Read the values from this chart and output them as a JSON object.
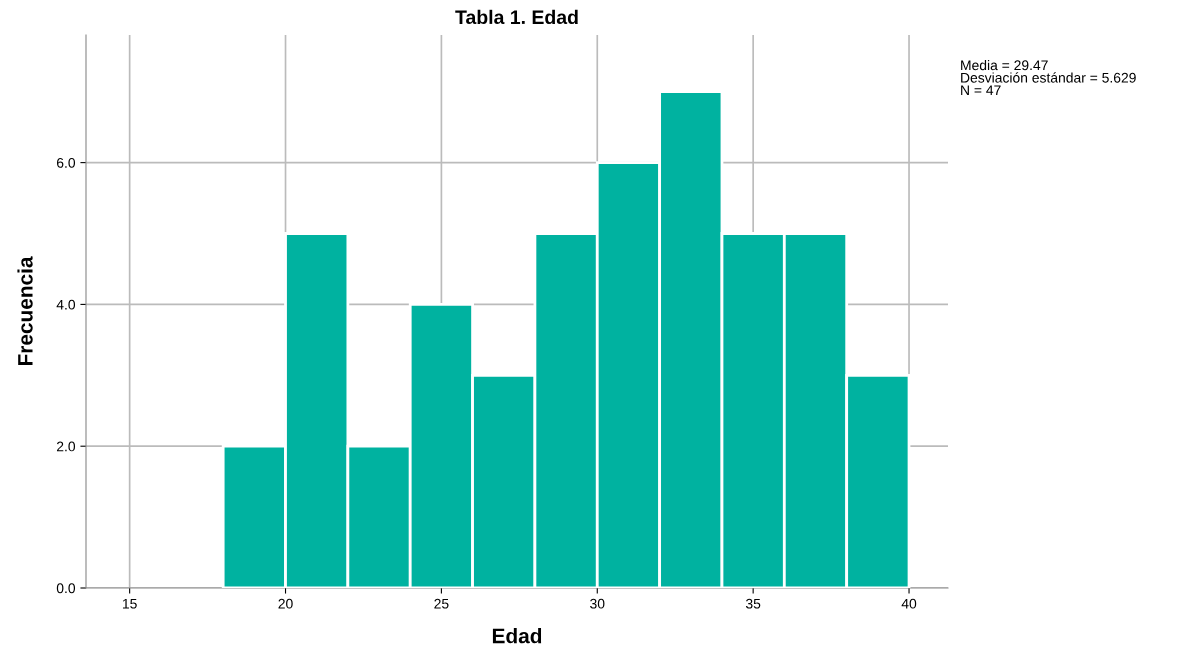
{
  "chart_data": {
    "type": "histogram",
    "title": "Tabla 1. Edad",
    "xlabel": "Edad",
    "ylabel": "Frecuencia",
    "bins": [
      18,
      20,
      22,
      24,
      26,
      28,
      30,
      32,
      34,
      36,
      38,
      40
    ],
    "values": [
      2,
      5,
      2,
      4,
      3,
      5,
      6,
      7,
      5,
      5,
      3
    ],
    "color": "#00b2a0",
    "xlim": [
      13.6,
      41.25
    ],
    "xticks": [
      15,
      20,
      25,
      30,
      35,
      40
    ],
    "ylim": [
      0,
      7.8
    ],
    "yticks": [
      {
        "value": 0,
        "label": "0.0"
      },
      {
        "value": 2,
        "label": "2.0"
      },
      {
        "value": 4,
        "label": "4.0"
      },
      {
        "value": 6,
        "label": "6.0"
      }
    ],
    "grid": true,
    "annotations": [
      "Media = 29.47\nDesviación estándar = 5.629\nN = 47"
    ]
  }
}
